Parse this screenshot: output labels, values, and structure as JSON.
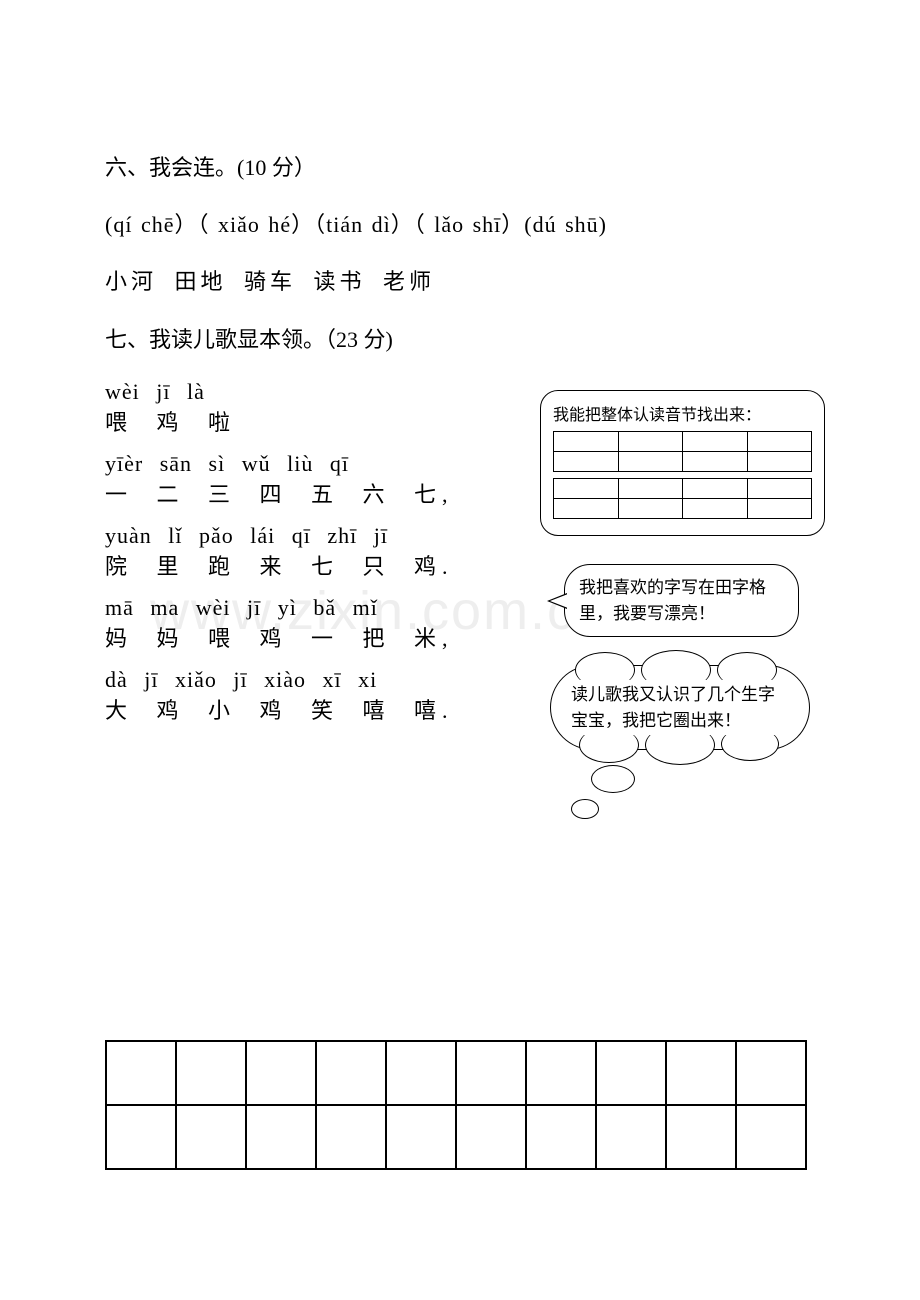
{
  "watermark": "www.zixin.com.cn",
  "q6": {
    "title": "六、我会连。(10 分）",
    "pinyin_row": " (qí  chē）（ xiǎo hé）（tián dì）（ lǎo shī）(dú  shū)",
    "chinese_row": "   小河        田地        骑车       读书        老师"
  },
  "q7": {
    "title": "七、我读儿歌显本领。（23 分)",
    "poem": [
      {
        "py": "wèi   jī   là",
        "ch": "喂   鸡   啦"
      },
      {
        "py": "yīèr   sān   sì   wǔ   liù   qī",
        "ch": "一  二   三   四   五   六   七,"
      },
      {
        "py": "yuàn   lǐ   pǎo   lái   qī  zhī   jī",
        "ch": "院    里  跑    来   七   只  鸡."
      },
      {
        "py": "mā   ma   wèi   jī   yì   bǎ  mǐ",
        "ch": "妈   妈    喂   鸡  一   把   米,"
      },
      {
        "py": "dà  jī   xiǎo   jī   xiào   xī  xi",
        "ch": "大   鸡    小  鸡   笑   嘻 嘻."
      }
    ]
  },
  "callouts": {
    "box1_text": "我能把整体认读音节找出来：",
    "bubble_text": "我把喜欢的字写在田字格里，我要写漂亮！",
    "cloud_text": "读儿歌我又认识了几个生字宝宝，我把它圈出来！"
  },
  "big_grid": {
    "rows": 2,
    "cols": 10
  },
  "mini_grid": {
    "tables": 2,
    "rows": 2,
    "cols": 4
  },
  "colors": {
    "text": "#000000",
    "bg": "#ffffff",
    "watermark": "#eeeeee"
  }
}
